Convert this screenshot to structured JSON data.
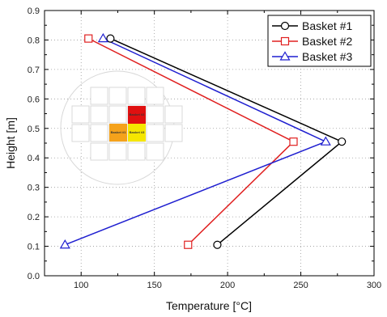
{
  "chart_data": {
    "type": "line",
    "xlabel": "Temperature [°C]",
    "ylabel": "Height [m]",
    "xlim": [
      75,
      300
    ],
    "ylim": [
      0.0,
      0.9
    ],
    "xticks": [
      100,
      150,
      200,
      250,
      300
    ],
    "xtick_labels": [
      "100",
      "150",
      "200",
      "250",
      "300"
    ],
    "yticks": [
      0.0,
      0.1,
      0.2,
      0.3,
      0.4,
      0.5,
      0.6,
      0.7,
      0.8,
      0.9
    ],
    "ytick_labels": [
      "0.0",
      "0.1",
      "0.2",
      "0.3",
      "0.4",
      "0.5",
      "0.6",
      "0.7",
      "0.8",
      "0.9"
    ],
    "grid": true,
    "legend_position": "top-right",
    "series": [
      {
        "name": "Basket #1",
        "color": "#000000",
        "marker": "circle",
        "x": [
          120,
          278,
          193
        ],
        "y": [
          0.805,
          0.455,
          0.105
        ]
      },
      {
        "name": "Basket #2",
        "color": "#e02020",
        "marker": "square",
        "x": [
          105,
          245,
          173
        ],
        "y": [
          0.805,
          0.455,
          0.105
        ]
      },
      {
        "name": "Basket #3",
        "color": "#1f1fd0",
        "marker": "triangle",
        "x": [
          115,
          267,
          89
        ],
        "y": [
          0.805,
          0.455,
          0.105
        ]
      }
    ],
    "inset": {
      "labels": [
        "Basket #2",
        "Basket #1",
        "Basket #3"
      ]
    }
  }
}
